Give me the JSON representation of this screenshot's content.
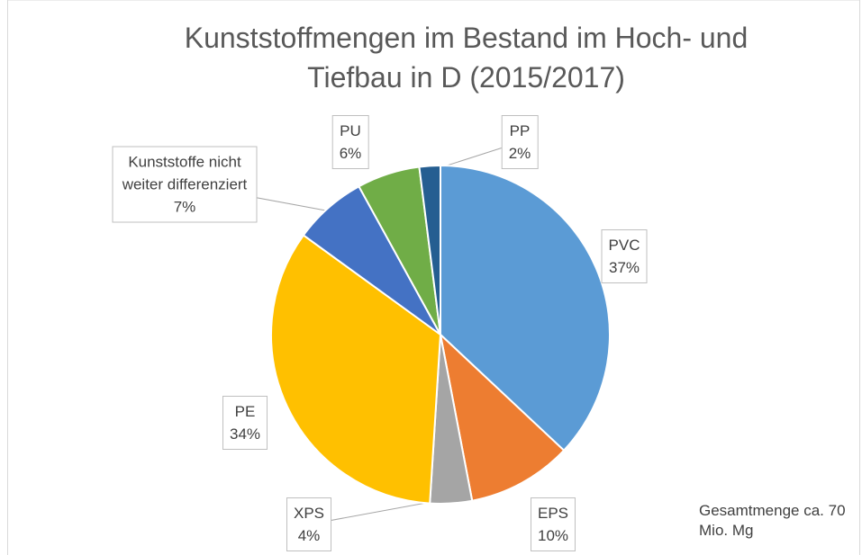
{
  "chart_data": {
    "type": "pie",
    "title": "Kunststoffmengen im Bestand im Hoch- und Tiefbau in D (2015/2017)",
    "categories": [
      "PVC",
      "EPS",
      "XPS",
      "PE",
      "Kunststoffe nicht weiter differenziert",
      "PU",
      "PP"
    ],
    "values": [
      37,
      10,
      4,
      34,
      7,
      6,
      2
    ],
    "value_labels": [
      "37%",
      "10%",
      "4%",
      "34%",
      "7%",
      "6%",
      "2%"
    ],
    "colors": [
      "#5b9bd5",
      "#ed7d31",
      "#a5a5a5",
      "#ffc000",
      "#4472c4",
      "#70ad47",
      "#255e91"
    ],
    "annotation": "Gesamtmenge ca. 70 Mio. Mg"
  }
}
